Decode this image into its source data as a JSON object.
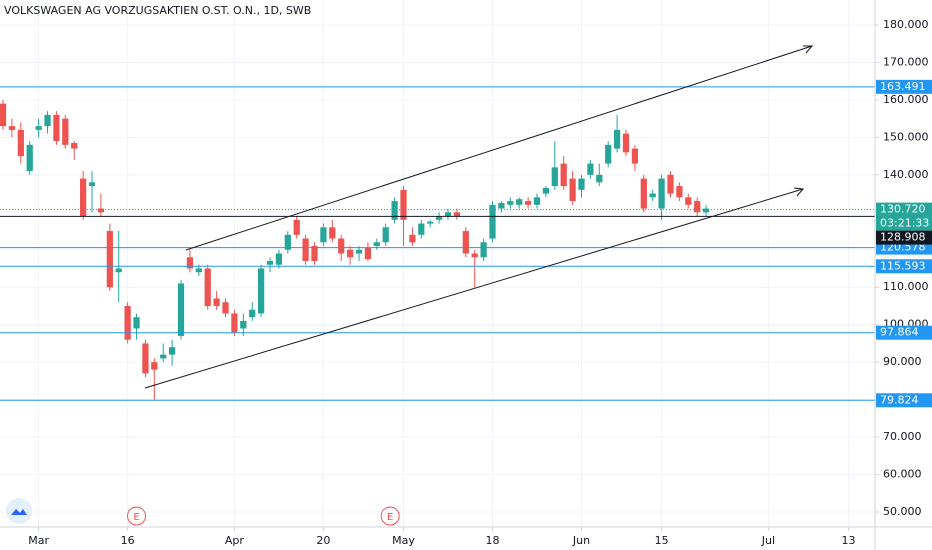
{
  "chart_data": {
    "type": "candlestick",
    "title": "VOLKSWAGEN AG VORZUGSAKTIEN O.ST. O.N., 1D, SWB",
    "up_color": "#26a69a",
    "down_color": "#ef5350",
    "open": [
      159,
      153,
      152,
      141,
      152,
      153,
      156,
      155,
      148.5,
      139,
      137,
      131,
      125,
      114,
      105,
      99,
      95,
      90,
      91,
      92,
      97,
      118,
      114,
      115,
      107,
      106,
      103,
      99,
      102,
      103,
      116,
      116,
      120,
      128,
      123,
      121,
      122,
      126,
      123,
      120,
      119,
      120.5,
      121,
      122,
      128,
      136,
      124,
      124,
      127,
      128,
      129,
      130,
      125,
      119,
      118,
      123,
      131,
      132,
      132,
      133,
      132,
      135,
      137,
      143,
      139,
      136,
      140,
      138,
      143,
      147,
      151,
      147,
      139,
      134,
      131,
      140,
      137,
      134,
      133,
      130
    ],
    "high": [
      160,
      155,
      154,
      149,
      155,
      157,
      157,
      156,
      149,
      141,
      141,
      135,
      127,
      125,
      106,
      103,
      96,
      91,
      95,
      96,
      112,
      120,
      116,
      116,
      109,
      107,
      104,
      103,
      106,
      116,
      118,
      120,
      125,
      129,
      124,
      122,
      127,
      128,
      124,
      121,
      121,
      122,
      123,
      127,
      134,
      137,
      126,
      128,
      128,
      130,
      131,
      131,
      126,
      120,
      123,
      133,
      133,
      134,
      134,
      134,
      135,
      137,
      149,
      145,
      141,
      140,
      144,
      143,
      149,
      156,
      152,
      148,
      140,
      136,
      140,
      141,
      138,
      135,
      134,
      132
    ],
    "low": [
      152,
      150,
      143,
      140,
      150,
      151,
      148,
      147,
      144,
      128,
      130,
      129,
      109,
      106,
      95,
      96,
      86,
      80,
      90,
      89,
      96,
      114,
      113,
      104,
      104,
      102,
      97,
      97,
      101,
      102,
      114,
      115,
      119,
      123,
      116,
      116,
      121,
      122,
      117,
      116,
      117,
      117,
      120,
      121,
      127,
      121,
      121,
      123,
      126,
      127,
      128,
      128,
      118,
      110,
      117,
      122,
      130,
      131,
      131,
      131,
      131,
      134,
      136,
      136,
      132,
      134,
      139,
      137,
      142,
      146,
      145,
      141,
      130,
      133,
      128,
      134,
      133,
      131,
      129,
      129
    ],
    "close": [
      153,
      152,
      145,
      148,
      153,
      156,
      149,
      148,
      147,
      129,
      138,
      130,
      110,
      115,
      96,
      102,
      87,
      88,
      92,
      94,
      111,
      115,
      115,
      105,
      105,
      103,
      98,
      101,
      104,
      115,
      117,
      119,
      124,
      124,
      117,
      117,
      126,
      123,
      119,
      118,
      120,
      117.5,
      122,
      126,
      133,
      128,
      122,
      127,
      127.5,
      129,
      130,
      129,
      119,
      118,
      122,
      132,
      132.5,
      133,
      133.5,
      132,
      134,
      136.5,
      142,
      137,
      133,
      139,
      143,
      140,
      148,
      152,
      146,
      143,
      131,
      135,
      139,
      135,
      134,
      132,
      130,
      131
    ],
    "xlim": [
      -0.34,
      97.98
    ],
    "xticks": [
      {
        "value": 4,
        "label": "Mar"
      },
      {
        "value": 14,
        "label": "16"
      },
      {
        "value": 26,
        "label": "Apr"
      },
      {
        "value": 36,
        "label": "20"
      },
      {
        "value": 45,
        "label": "May"
      },
      {
        "value": 55,
        "label": "18"
      },
      {
        "value": 65,
        "label": "Jun"
      },
      {
        "value": 74,
        "label": "15"
      },
      {
        "value": 86,
        "label": "Jul"
      },
      {
        "value": 95,
        "label": "13"
      }
    ],
    "ylim": [
      46,
      186.67
    ],
    "yticks": [
      {
        "value": 50,
        "label": "50.000"
      },
      {
        "value": 60,
        "label": "60.000"
      },
      {
        "value": 70,
        "label": "70.000"
      },
      {
        "value": 80,
        "label": "80.000"
      },
      {
        "value": 90,
        "label": "90.000"
      },
      {
        "value": 100,
        "label": "100.000"
      },
      {
        "value": 110,
        "label": "110.000"
      },
      {
        "value": 120,
        "label": "120.000"
      },
      {
        "value": 130,
        "label": "130.000"
      },
      {
        "value": 140,
        "label": "140.000"
      },
      {
        "value": 150,
        "label": "150.000"
      },
      {
        "value": 160,
        "label": "160.000"
      },
      {
        "value": 170,
        "label": "170.000"
      },
      {
        "value": 180,
        "label": "180.000"
      }
    ],
    "grid": true,
    "price_lines": [
      163.491,
      120.578,
      115.593,
      97.864,
      79.824
    ],
    "price_line_color": "#2196f3",
    "last_price": {
      "value": 130.72,
      "label": "130.720",
      "countdown": "03:21:33",
      "color": "#26a69a"
    },
    "marker_line": {
      "value": 128.908,
      "color": "#131722"
    },
    "events": [
      {
        "label": "E",
        "x": 15
      },
      {
        "label": "E",
        "x": 43.5
      }
    ]
  }
}
